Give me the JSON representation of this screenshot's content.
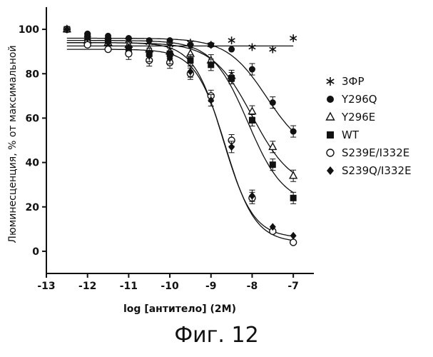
{
  "figure": {
    "caption": "Фиг. 12"
  },
  "chart_data": {
    "type": "scatter",
    "title": "",
    "xlabel": "log [антитело] (2M)",
    "ylabel": "Люминесценция, % от максимальной",
    "xlim": [
      -13,
      -6.5
    ],
    "ylim": [
      -10,
      110
    ],
    "xticks": [
      "-13",
      "-12",
      "-11",
      "-10",
      "-9",
      "-8",
      "-7"
    ],
    "yticks": [
      "0",
      "20",
      "40",
      "60",
      "80",
      "100"
    ],
    "grid": false,
    "legend_position": "right",
    "series": [
      {
        "name": "3ФР",
        "marker": "asterisk",
        "x": [
          -12.5,
          -12.0,
          -11.5,
          -11.0,
          -10.5,
          -10.0,
          -9.5,
          -9.0,
          -8.5,
          -8.0,
          -7.5,
          -7.0
        ],
        "y": [
          100,
          96,
          95,
          95,
          94,
          93,
          94,
          93,
          95,
          92,
          91,
          96
        ],
        "fit": {
          "top": 92.5,
          "bottom": 92.5,
          "ec50": -9.0,
          "hill": 1
        }
      },
      {
        "name": "Y296Q",
        "marker": "circle-filled",
        "x": [
          -12.5,
          -12.0,
          -11.5,
          -11.0,
          -10.5,
          -10.0,
          -9.5,
          -9.0,
          -8.5,
          -8.0,
          -7.5,
          -7.0
        ],
        "y": [
          100,
          98,
          97,
          96,
          95,
          95,
          93,
          93,
          91,
          82,
          67,
          54
        ],
        "fit": {
          "top": 96,
          "bottom": 43,
          "ec50": -7.65,
          "hill": 0.9
        }
      },
      {
        "name": "Y296E",
        "marker": "triangle-open",
        "x": [
          -12.5,
          -12.0,
          -11.5,
          -11.0,
          -10.5,
          -10.0,
          -9.5,
          -9.0,
          -8.5,
          -8.0,
          -7.5,
          -7.0
        ],
        "y": [
          100,
          95,
          94,
          93,
          91,
          90,
          89,
          86,
          79,
          63,
          47,
          34
        ],
        "fit": {
          "top": 94,
          "bottom": 28,
          "ec50": -8.0,
          "hill": 0.9
        }
      },
      {
        "name": "WT",
        "marker": "square-filled",
        "x": [
          -12.5,
          -12.0,
          -11.5,
          -11.0,
          -10.5,
          -10.0,
          -9.5,
          -9.0,
          -8.5,
          -8.0,
          -7.5,
          -7.0
        ],
        "y": [
          100,
          97,
          95,
          91,
          89,
          89,
          86,
          84,
          78,
          59,
          39,
          24
        ],
        "fit": {
          "top": 95,
          "bottom": 21,
          "ec50": -8.1,
          "hill": 1.0
        }
      },
      {
        "name": "S239E/I332E",
        "marker": "circle-open",
        "x": [
          -12.5,
          -12.0,
          -11.5,
          -11.0,
          -10.5,
          -10.0,
          -9.5,
          -9.0,
          -8.5,
          -8.0,
          -7.5,
          -7.0
        ],
        "y": [
          100,
          93,
          91,
          89,
          86,
          85,
          80,
          70,
          50,
          24,
          9,
          4
        ],
        "fit": {
          "top": 91,
          "bottom": 4,
          "ec50": -8.65,
          "hill": 1.2
        }
      },
      {
        "name": "S239Q/I332E",
        "marker": "diamond-filled",
        "x": [
          -12.5,
          -12.0,
          -11.5,
          -11.0,
          -10.5,
          -10.0,
          -9.5,
          -9.0,
          -8.5,
          -8.0,
          -7.5,
          -7.0
        ],
        "y": [
          100,
          96,
          94,
          92,
          88,
          87,
          81,
          68,
          47,
          25,
          11,
          7
        ],
        "fit": {
          "top": 94,
          "bottom": 6,
          "ec50": -8.7,
          "hill": 1.2
        }
      }
    ]
  }
}
